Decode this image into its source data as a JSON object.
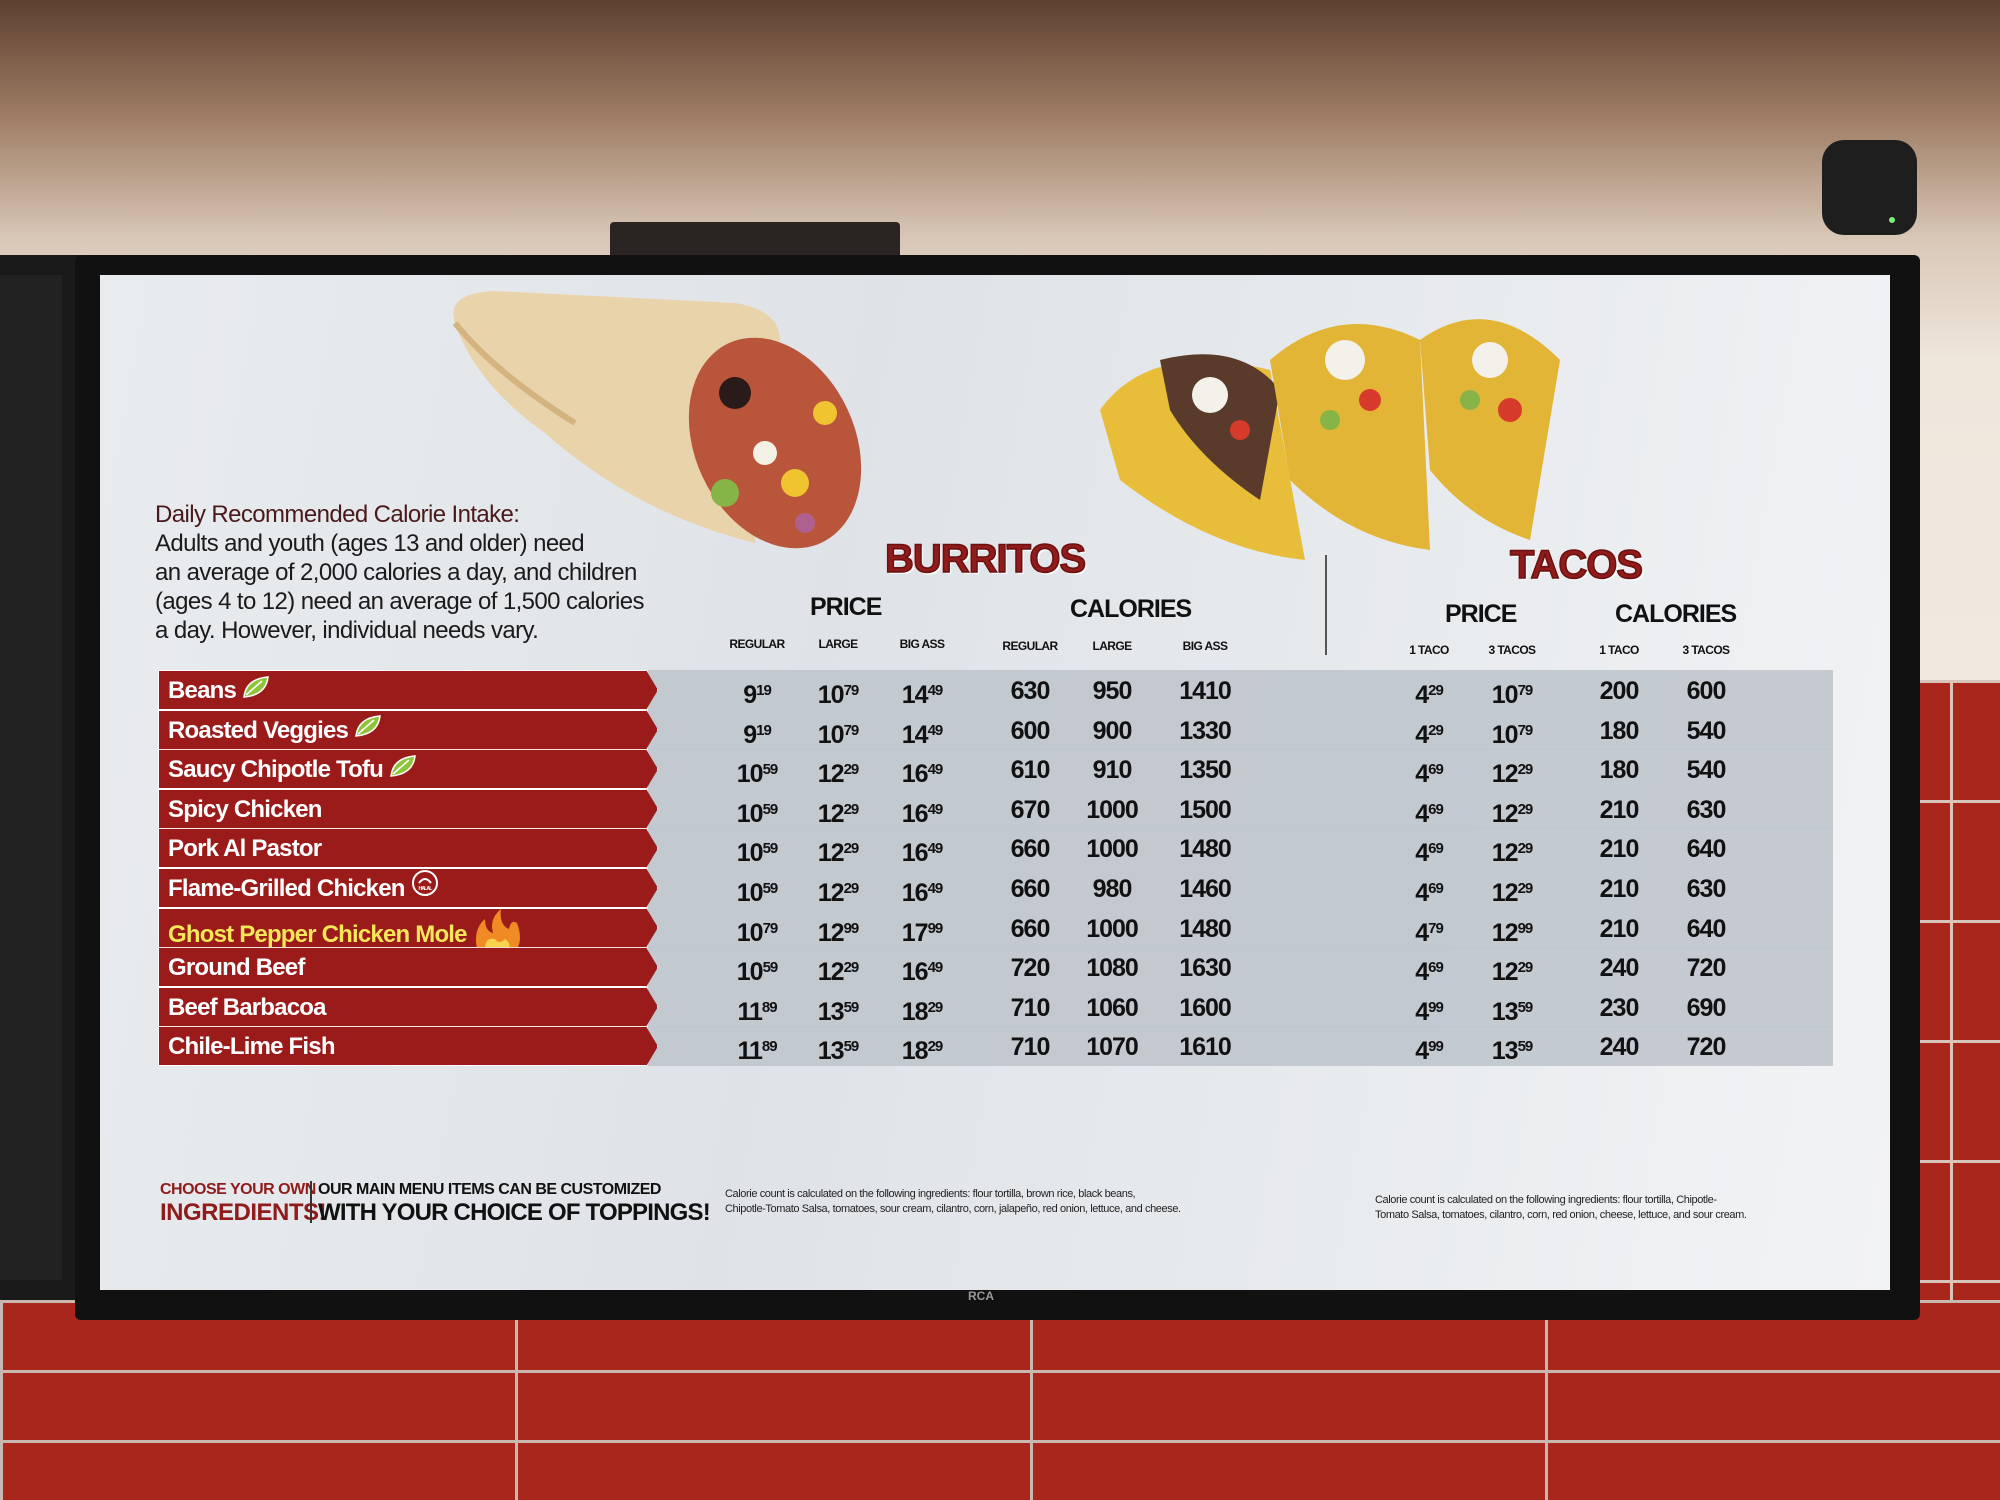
{
  "tv_brand": "RCA",
  "intake": {
    "heading": "Daily Recommended Calorie Intake:",
    "lines": [
      "Adults and youth (ages 13 and older) need",
      "an average of 2,000 calories a day, and children",
      "(ages 4 to 12) need an average of 1,500 calories",
      "a day. However, individual needs vary."
    ]
  },
  "burritos": {
    "title": "BURRITOS",
    "price_header": "PRICE",
    "calories_header": "CALORIES",
    "price_cols": [
      "REGULAR",
      "LARGE",
      "BIG ASS"
    ],
    "calorie_cols": [
      "REGULAR",
      "LARGE",
      "BIG ASS"
    ],
    "footnote": [
      "Calorie count is calculated on the following ingredients: flour tortilla, brown rice, black beans,",
      "Chipotle-Tomato Salsa, tomatoes, sour cream, cilantro, corn, jalapeño, red onion, lettuce, and cheese."
    ]
  },
  "tacos": {
    "title": "TACOS",
    "price_header": "PRICE",
    "calories_header": "CALORIES",
    "price_cols": [
      "1 TACO",
      "3 TACOS"
    ],
    "calorie_cols": [
      "1 TACO",
      "3 TACOS"
    ],
    "footnote": [
      "Calorie count is calculated on the following ingredients: flour tortilla, Chipotle-",
      "Tomato Salsa, tomatoes, cilantro, corn, red onion, cheese, lettuce, and sour cream."
    ]
  },
  "items": [
    {
      "name": "Beans",
      "icon": "leaf-icon",
      "burrito_price": [
        "9.19",
        "10.79",
        "14.49"
      ],
      "burrito_cal": [
        "630",
        "950",
        "1410"
      ],
      "taco_price": [
        "4.29",
        "10.79"
      ],
      "taco_cal": [
        "200",
        "600"
      ]
    },
    {
      "name": "Roasted Veggies",
      "icon": "leaf-icon",
      "burrito_price": [
        "9.19",
        "10.79",
        "14.49"
      ],
      "burrito_cal": [
        "600",
        "900",
        "1330"
      ],
      "taco_price": [
        "4.29",
        "10.79"
      ],
      "taco_cal": [
        "180",
        "540"
      ]
    },
    {
      "name": "Saucy Chipotle Tofu",
      "icon": "leaf-icon",
      "burrito_price": [
        "10.59",
        "12.29",
        "16.49"
      ],
      "burrito_cal": [
        "610",
        "910",
        "1350"
      ],
      "taco_price": [
        "4.69",
        "12.29"
      ],
      "taco_cal": [
        "180",
        "540"
      ]
    },
    {
      "name": "Spicy Chicken",
      "icon": "",
      "burrito_price": [
        "10.59",
        "12.29",
        "16.49"
      ],
      "burrito_cal": [
        "670",
        "1000",
        "1500"
      ],
      "taco_price": [
        "4.69",
        "12.29"
      ],
      "taco_cal": [
        "210",
        "630"
      ]
    },
    {
      "name": "Pork Al Pastor",
      "icon": "",
      "burrito_price": [
        "10.59",
        "12.29",
        "16.49"
      ],
      "burrito_cal": [
        "660",
        "1000",
        "1480"
      ],
      "taco_price": [
        "4.69",
        "12.29"
      ],
      "taco_cal": [
        "210",
        "640"
      ]
    },
    {
      "name": "Flame-Grilled Chicken",
      "icon": "halal-icon",
      "icon_text": "HALAL",
      "burrito_price": [
        "10.59",
        "12.29",
        "16.49"
      ],
      "burrito_cal": [
        "660",
        "980",
        "1460"
      ],
      "taco_price": [
        "4.69",
        "12.29"
      ],
      "taco_cal": [
        "210",
        "630"
      ]
    },
    {
      "name": "Ghost Pepper Chicken Mole",
      "icon": "flame-icon",
      "highlight": "#f6e65a",
      "burrito_price": [
        "10.79",
        "12.99",
        "17.99"
      ],
      "burrito_cal": [
        "660",
        "1000",
        "1480"
      ],
      "taco_price": [
        "4.79",
        "12.99"
      ],
      "taco_cal": [
        "210",
        "640"
      ]
    },
    {
      "name": "Ground Beef",
      "icon": "",
      "burrito_price": [
        "10.59",
        "12.29",
        "16.49"
      ],
      "burrito_cal": [
        "720",
        "1080",
        "1630"
      ],
      "taco_price": [
        "4.69",
        "12.29"
      ],
      "taco_cal": [
        "240",
        "720"
      ]
    },
    {
      "name": "Beef Barbacoa",
      "icon": "",
      "burrito_price": [
        "11.89",
        "13.59",
        "18.29"
      ],
      "burrito_cal": [
        "710",
        "1060",
        "1600"
      ],
      "taco_price": [
        "4.99",
        "13.59"
      ],
      "taco_cal": [
        "230",
        "690"
      ]
    },
    {
      "name": "Chile-Lime Fish",
      "icon": "",
      "burrito_price": [
        "11.89",
        "13.59",
        "18.29"
      ],
      "burrito_cal": [
        "710",
        "1070",
        "1610"
      ],
      "taco_price": [
        "4.99",
        "13.59"
      ],
      "taco_cal": [
        "240",
        "720"
      ]
    }
  ],
  "footer": {
    "choose_small": "CHOOSE YOUR OWN",
    "choose_big": "INGREDIENTS!",
    "custom_small": "OUR MAIN MENU ITEMS CAN BE CUSTOMIZED",
    "custom_big": "WITH YOUR CHOICE OF TOPPINGS!"
  },
  "colors": {
    "label_red": "#9b1b1b",
    "title_red": "#8f1b1b",
    "row_gray": "#bfc5cc",
    "highlight_yellow": "#f6e65a"
  }
}
